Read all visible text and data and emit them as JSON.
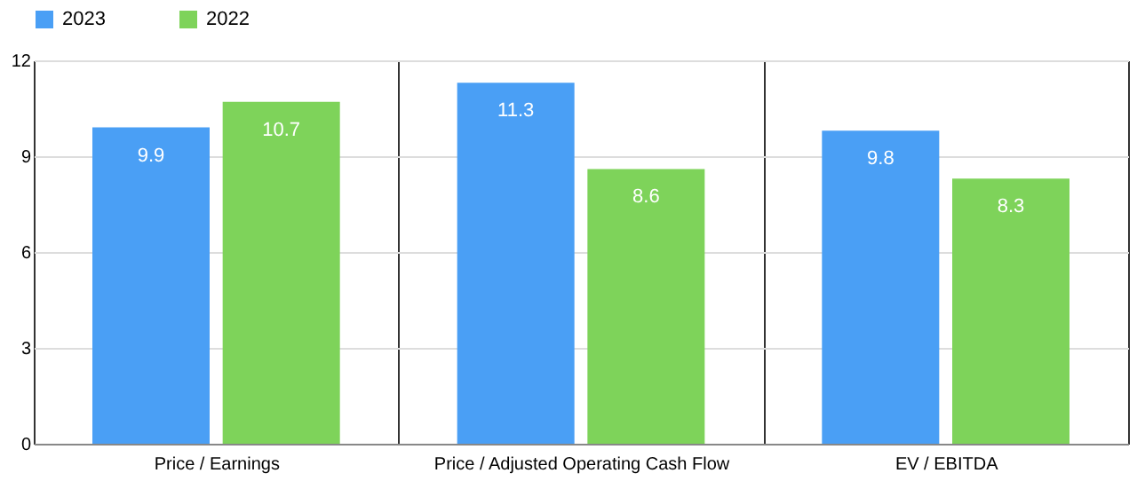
{
  "chart_data": {
    "type": "bar",
    "categories": [
      "Price / Earnings",
      "Price / Adjusted Operating Cash Flow",
      "EV / EBITDA"
    ],
    "series": [
      {
        "name": "2023",
        "color": "#4a9ff5",
        "values": [
          9.9,
          11.3,
          9.8
        ]
      },
      {
        "name": "2022",
        "color": "#7ed35a",
        "values": [
          10.7,
          8.6,
          8.3
        ]
      }
    ],
    "ylim": [
      0,
      12
    ],
    "yticks": [
      0,
      3,
      6,
      9,
      12
    ],
    "grid": true,
    "legend": "top",
    "data_labels": true
  }
}
